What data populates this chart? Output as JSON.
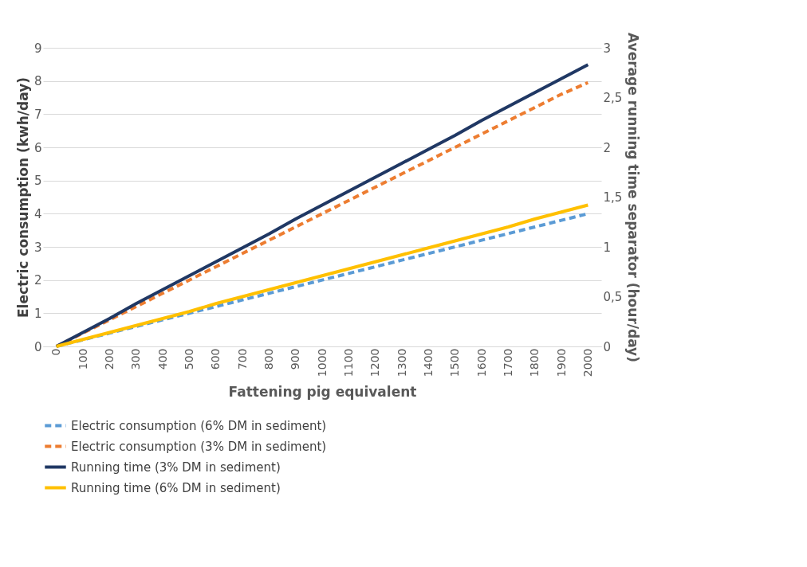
{
  "chart_data": {
    "type": "line",
    "xlabel": "Fattening pig equivalent",
    "ylabel": "Electric consumption (kwh/day)",
    "y2label": "Average running time separator (hour/day)",
    "categories": [
      "0",
      "100",
      "200",
      "300",
      "400",
      "500",
      "600",
      "700",
      "800",
      "900",
      "1000",
      "1100",
      "1200",
      "1300",
      "1400",
      "1500",
      "1600",
      "1700",
      "1800",
      "1900",
      "2000"
    ],
    "series": [
      {
        "name": "Electric consumption (6% DM in sediment)",
        "color": "#5b9bd5",
        "line_style": "dashed",
        "values": [
          0,
          0.2,
          0.4,
          0.6,
          0.8,
          1.0,
          1.2,
          1.4,
          1.6,
          1.8,
          2.0,
          2.2,
          2.4,
          2.6,
          2.8,
          3.0,
          3.2,
          3.4,
          3.6,
          3.8,
          4.0
        ]
      },
      {
        "name": "Electric consumption (3% DM in sediment)",
        "color": "#ed7d31",
        "line_style": "dashed",
        "values": [
          0,
          0.4,
          0.8,
          1.2,
          1.6,
          2.0,
          2.4,
          2.8,
          3.2,
          3.6,
          4.0,
          4.4,
          4.8,
          5.2,
          5.6,
          6.0,
          6.4,
          6.8,
          7.2,
          7.6,
          7.95
        ]
      },
      {
        "name": "Running time (3% DM in sediment)",
        "color": "#203864",
        "line_style": "solid",
        "axis": "y2",
        "values": [
          0,
          0.14,
          0.28,
          0.43,
          0.57,
          0.71,
          0.85,
          0.99,
          1.13,
          1.28,
          1.42,
          1.56,
          1.7,
          1.84,
          1.98,
          2.12,
          2.27,
          2.41,
          2.55,
          2.69,
          2.83
        ]
      },
      {
        "name": "Running time (6% DM in sediment)",
        "color": "#ffc000",
        "line_style": "solid",
        "axis": "y2",
        "values": [
          0,
          0.07,
          0.14,
          0.21,
          0.28,
          0.35,
          0.43,
          0.5,
          0.57,
          0.64,
          0.71,
          0.78,
          0.85,
          0.92,
          0.99,
          1.06,
          1.13,
          1.2,
          1.28,
          1.35,
          1.42
        ]
      }
    ],
    "ylim": [
      0,
      9
    ],
    "yticks": [
      0,
      1,
      2,
      3,
      4,
      5,
      6,
      7,
      8,
      9
    ],
    "y2lim": [
      0,
      3
    ],
    "y2ticks": [
      0,
      {
        "value": 0.5,
        "label": "0,5"
      },
      1,
      {
        "value": 1.5,
        "label": "1,5"
      },
      2,
      {
        "value": 2.5,
        "label": "2,5"
      },
      3
    ],
    "grid": "y",
    "legend": "bottom",
    "marker": "none"
  }
}
